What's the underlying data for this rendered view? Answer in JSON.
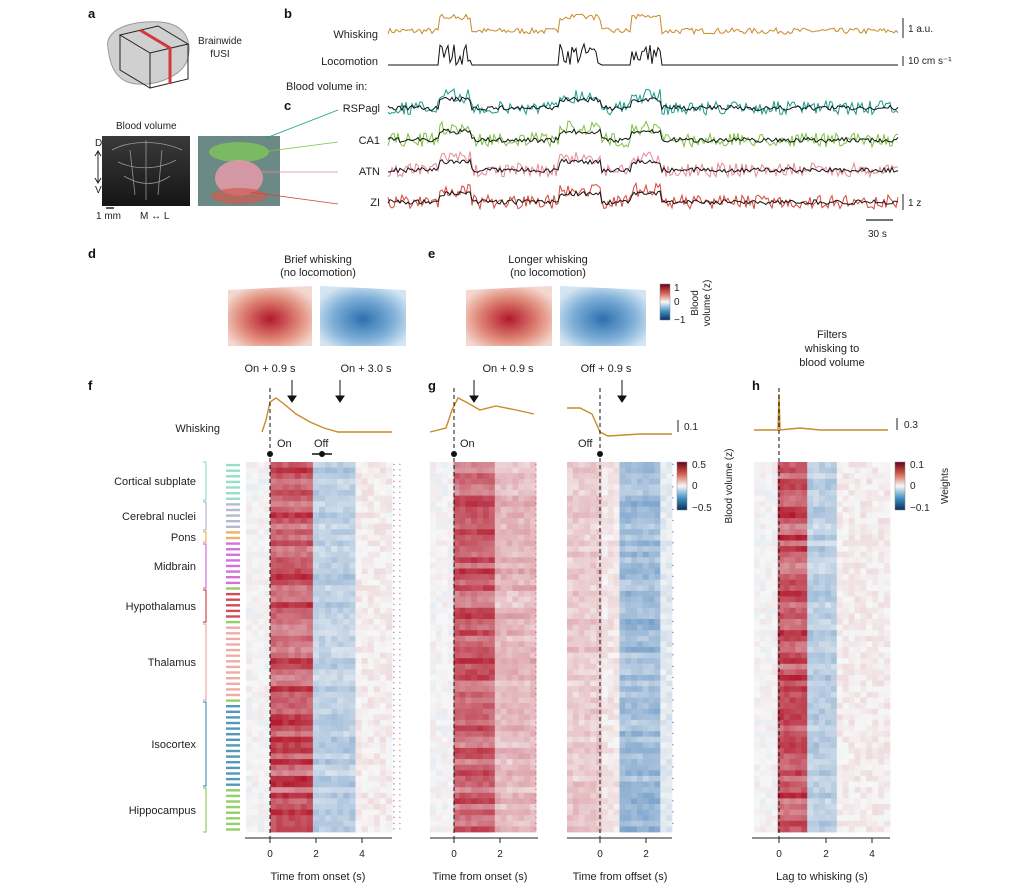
{
  "panels": {
    "a": "a",
    "b": "b",
    "c": "c",
    "d": "d",
    "e": "e",
    "f": "f",
    "g": "g",
    "h": "h"
  },
  "panel_a": {
    "title": "Brainwide\nfUSI",
    "blood_volume": "Blood volume",
    "axis_d": "D",
    "axis_v": "V",
    "scale_mm": "1 mm",
    "ml_axis": "M ↔ L"
  },
  "panel_b": {
    "whisking": "Whisking",
    "locomotion": "Locomotion",
    "scale_whisk": "1 a.u.",
    "scale_loco": "10 cm s⁻¹",
    "blood_volume_in": "Blood volume in:"
  },
  "panel_c": {
    "regions": [
      "RSPagl",
      "CA1",
      "ATN",
      "ZI"
    ],
    "scale_z": "1 z",
    "scale_time": "30 s"
  },
  "panel_d": {
    "title1": "Brief whisking",
    "title2": "(no locomotion)"
  },
  "panel_e": {
    "title1": "Longer whisking",
    "title2": "(no locomotion)"
  },
  "colorbar_top": {
    "max": "1",
    "mid": "0",
    "min": "−1",
    "label": "Blood\nvolume (z)"
  },
  "panel_f": {
    "ann1": "On + 0.9 s",
    "ann2": "On + 3.0 s",
    "whisking": "Whisking",
    "scale": "0.1",
    "on": "On",
    "off": "Off",
    "xlabel": "Time from onset (s)",
    "xticks": [
      "0",
      "2",
      "4"
    ],
    "groups": [
      "Cortical subplate",
      "Cerebral nuclei",
      "Pons",
      "Midbrain",
      "Hypothalamus",
      "Thalamus",
      "Isocortex",
      "Hippocampus"
    ]
  },
  "panel_g": {
    "ann1": "On + 0.9 s",
    "ann2": "Off + 0.9 s",
    "on": "On",
    "off": "Off",
    "xlabel1": "Time from onset (s)",
    "xlabel2": "Time from offset (s)",
    "xticks1": [
      "0",
      "2"
    ],
    "xticks2": [
      "0",
      "2"
    ],
    "cb_max": "0.5",
    "cb_mid": "0",
    "cb_min": "−0.5",
    "cb_label": "Blood volume (z)"
  },
  "panel_h": {
    "title": "Filters\nwhisking to\nblood volume",
    "scale": "0.3",
    "xlabel": "Lag to whisking (s)",
    "xticks": [
      "0",
      "2",
      "4"
    ],
    "cb_max": "0.1",
    "cb_mid": "0",
    "cb_min": "−0.1",
    "cb_label": "Weights"
  },
  "colors": {
    "whisking": "#c98a2a",
    "locomotion": "#111111",
    "rsp": "#1a9a8a",
    "ca1": "#7cc242",
    "atn": "#e8889a",
    "zi": "#d9453a",
    "red": "#b2182b",
    "blue": "#2166ac"
  }
}
